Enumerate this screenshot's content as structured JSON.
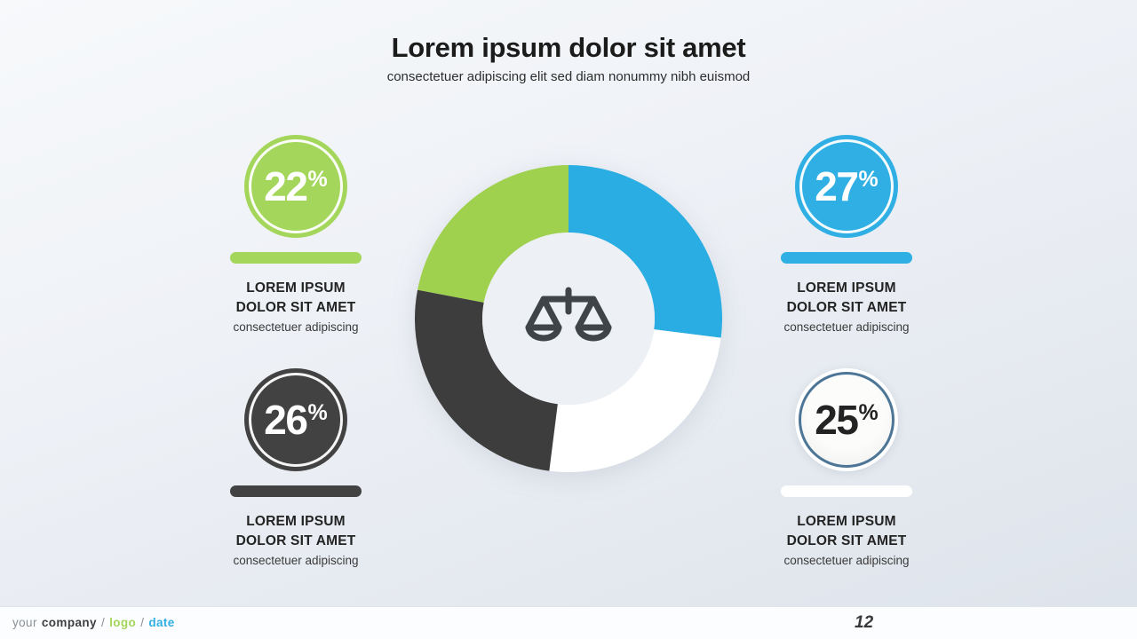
{
  "slide": {
    "title": "Lorem ipsum dolor sit amet",
    "subtitle": "consectetuer adipiscing elit sed diam nonummy nibh euismod"
  },
  "stats": [
    {
      "name": "green",
      "value": "22",
      "unit": "%",
      "color": "#a4d65c",
      "heading_line1": "LOREM IPSUM",
      "heading_line2": "DOLOR SIT AMET",
      "subtext": "consectetuer adipiscing"
    },
    {
      "name": "blue",
      "value": "27",
      "unit": "%",
      "color": "#2fafe3",
      "heading_line1": "LOREM IPSUM",
      "heading_line2": "DOLOR SIT AMET",
      "subtext": "consectetuer adipiscing"
    },
    {
      "name": "dark",
      "value": "26",
      "unit": "%",
      "color": "#424242",
      "heading_line1": "LOREM IPSUM",
      "heading_line2": "DOLOR SIT AMET",
      "subtext": "consectetuer adipiscing"
    },
    {
      "name": "white",
      "value": "25",
      "unit": "%",
      "color": "#ffffff",
      "ring_color": "#4d7596",
      "heading_line1": "LOREM IPSUM",
      "heading_line2": "DOLOR SIT AMET",
      "subtext": "consectetuer adipiscing"
    }
  ],
  "chart_data": {
    "type": "pie",
    "variant": "donut",
    "title": "",
    "legend_position": "none",
    "start_angle_deg": 0,
    "direction": "clockwise",
    "hole_ratio": 0.57,
    "center_icon": "scales-of-justice",
    "segments": [
      {
        "label": "blue segment",
        "value": 27,
        "color": "#29ade2"
      },
      {
        "label": "white segment",
        "value": 25,
        "color": "#ffffff"
      },
      {
        "label": "dark segment",
        "value": 26,
        "color": "#3d3d3d"
      },
      {
        "label": "green segment",
        "value": 22,
        "color": "#9fd14f"
      }
    ]
  },
  "footer": {
    "prefix": "your",
    "company": "company",
    "sep1": "/",
    "logo": "logo",
    "sep2": "/",
    "date": "date",
    "page_number": "12"
  },
  "colors": {
    "background_top": "#f7f9fb",
    "background_bottom": "#dde3eb",
    "accent_green": "#a4d65c",
    "accent_blue": "#2fafe3",
    "accent_dark": "#424242",
    "outline_ring_blue": "#4d7596",
    "icon_stroke": "#3f4448",
    "text_dark": "#1b1b1b"
  }
}
